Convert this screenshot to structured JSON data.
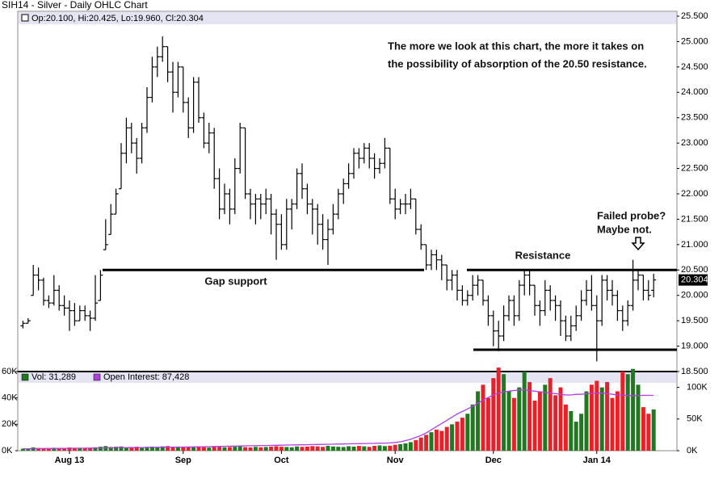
{
  "chart_data": {
    "type": "ohlc",
    "title": "SIH14 - Silver - Daily OHLC Chart",
    "info": "Op:20.100, Hi:20.425, Lo:19.960, Cl:20.304",
    "bar_color": "#000000",
    "xlim": [
      -1,
      126.5
    ],
    "xticks": [
      {
        "value": 9,
        "label": "Aug 13"
      },
      {
        "value": 31,
        "label": "Sep"
      },
      {
        "value": 50,
        "label": "Oct"
      },
      {
        "value": 72,
        "label": "Nov"
      },
      {
        "value": 91,
        "label": "Dec"
      },
      {
        "value": 111,
        "label": "Jan 14"
      }
    ],
    "ylim": [
      18.5,
      25.5
    ],
    "yticks": [
      {
        "value": 18.5,
        "label": "18.500"
      },
      {
        "value": 19,
        "label": "19.000"
      },
      {
        "value": 19.5,
        "label": "19.500"
      },
      {
        "value": 20,
        "label": "20.000"
      },
      {
        "value": 20.5,
        "label": "20.500"
      },
      {
        "value": 21,
        "label": "21.000"
      },
      {
        "value": 21.5,
        "label": "21.500"
      },
      {
        "value": 22,
        "label": "22.000"
      },
      {
        "value": 22.5,
        "label": "22.500"
      },
      {
        "value": 23,
        "label": "23.000"
      },
      {
        "value": 23.5,
        "label": "23.500"
      },
      {
        "value": 24,
        "label": "24.000"
      },
      {
        "value": 24.5,
        "label": "24.500"
      },
      {
        "value": 25,
        "label": "25.000"
      },
      {
        "value": 25.5,
        "label": "25.500"
      }
    ],
    "ohlc": [
      [
        19.4,
        19.5,
        19.35,
        19.45
      ],
      [
        19.45,
        19.55,
        19.45,
        19.5
      ],
      [
        20.0,
        20.6,
        20.0,
        20.4
      ],
      [
        20.4,
        20.55,
        20.1,
        20.3
      ],
      [
        20.3,
        20.35,
        19.8,
        19.9
      ],
      [
        19.9,
        20.0,
        19.75,
        19.85
      ],
      [
        19.85,
        20.4,
        19.8,
        20.1
      ],
      [
        20.1,
        20.2,
        19.7,
        19.8
      ],
      [
        19.8,
        20.0,
        19.6,
        19.75
      ],
      [
        19.75,
        19.9,
        19.3,
        19.7
      ],
      [
        19.7,
        19.85,
        19.4,
        19.5
      ],
      [
        19.5,
        19.8,
        19.5,
        19.7
      ],
      [
        19.7,
        19.8,
        19.5,
        19.6
      ],
      [
        19.6,
        19.7,
        19.3,
        19.55
      ],
      [
        19.55,
        20.4,
        19.5,
        19.85
      ],
      [
        19.9,
        20.5,
        19.9,
        20.4
      ],
      [
        20.9,
        21.5,
        20.9,
        21.0
      ],
      [
        21.2,
        21.8,
        21.2,
        21.6
      ],
      [
        21.6,
        22.1,
        21.6,
        22.0
      ],
      [
        22.1,
        23.0,
        22.1,
        22.8
      ],
      [
        22.8,
        23.5,
        22.6,
        23.3
      ],
      [
        23.3,
        23.4,
        22.8,
        23.0
      ],
      [
        23.0,
        23.1,
        22.4,
        22.7
      ],
      [
        22.7,
        23.4,
        22.6,
        23.3
      ],
      [
        23.3,
        24.1,
        23.2,
        23.9
      ],
      [
        23.9,
        24.7,
        23.8,
        24.5
      ],
      [
        24.5,
        24.9,
        24.3,
        24.7
      ],
      [
        24.7,
        25.1,
        24.6,
        24.9
      ],
      [
        24.9,
        24.9,
        24.2,
        24.4
      ],
      [
        24.4,
        24.6,
        23.6,
        24.0
      ],
      [
        24.0,
        24.6,
        23.9,
        24.5
      ],
      [
        24.5,
        24.5,
        23.6,
        23.8
      ],
      [
        23.8,
        23.9,
        23.1,
        23.3
      ],
      [
        23.3,
        24.3,
        23.2,
        24.2
      ],
      [
        24.2,
        24.3,
        23.4,
        23.5
      ],
      [
        23.5,
        23.6,
        22.9,
        23.0
      ],
      [
        23.0,
        23.4,
        22.8,
        23.2
      ],
      [
        23.2,
        23.3,
        22.1,
        22.3
      ],
      [
        22.3,
        22.5,
        21.5,
        21.7
      ],
      [
        21.7,
        22.2,
        21.6,
        22.0
      ],
      [
        22.0,
        22.1,
        21.4,
        21.7
      ],
      [
        21.7,
        22.7,
        21.6,
        22.5
      ],
      [
        22.5,
        23.4,
        22.4,
        23.3
      ],
      [
        23.3,
        23.3,
        21.9,
        22.0
      ],
      [
        22.0,
        22.1,
        21.5,
        21.8
      ],
      [
        21.8,
        22.0,
        21.4,
        21.9
      ],
      [
        21.9,
        22.0,
        21.5,
        21.8
      ],
      [
        21.8,
        22.1,
        21.6,
        21.9
      ],
      [
        21.9,
        22.0,
        21.2,
        21.6
      ],
      [
        21.6,
        21.7,
        20.7,
        21.4
      ],
      [
        21.4,
        21.6,
        20.9,
        21.0
      ],
      [
        21.0,
        21.9,
        20.9,
        21.7
      ],
      [
        21.7,
        21.9,
        21.3,
        21.8
      ],
      [
        21.8,
        22.5,
        21.7,
        22.4
      ],
      [
        22.4,
        22.6,
        21.9,
        22.1
      ],
      [
        22.1,
        22.2,
        21.6,
        21.8
      ],
      [
        21.8,
        21.9,
        21.2,
        21.7
      ],
      [
        21.7,
        21.8,
        21.0,
        21.4
      ],
      [
        21.4,
        21.6,
        20.9,
        21.1
      ],
      [
        21.1,
        21.5,
        20.6,
        21.3
      ],
      [
        21.3,
        21.8,
        21.2,
        21.6
      ],
      [
        21.6,
        22.1,
        21.5,
        22.0
      ],
      [
        22.0,
        22.3,
        21.8,
        22.2
      ],
      [
        22.2,
        22.6,
        22.1,
        22.4
      ],
      [
        22.4,
        22.9,
        22.3,
        22.8
      ],
      [
        22.8,
        22.9,
        22.5,
        22.7
      ],
      [
        22.7,
        23.0,
        22.6,
        22.9
      ],
      [
        22.9,
        23.0,
        22.5,
        22.7
      ],
      [
        22.7,
        22.8,
        22.3,
        22.5
      ],
      [
        22.5,
        22.7,
        22.4,
        22.6
      ],
      [
        22.6,
        23.1,
        22.5,
        22.9
      ],
      [
        22.9,
        22.9,
        21.8,
        21.9
      ],
      [
        21.9,
        22.1,
        21.5,
        21.7
      ],
      [
        21.7,
        21.9,
        21.6,
        21.8
      ],
      [
        21.8,
        22.0,
        21.6,
        21.8
      ],
      [
        21.8,
        22.1,
        21.7,
        21.9
      ],
      [
        21.9,
        21.9,
        21.2,
        21.3
      ],
      [
        21.3,
        21.4,
        20.9,
        21.0
      ],
      [
        21.0,
        21.0,
        20.5,
        20.6
      ],
      [
        20.6,
        20.9,
        20.5,
        20.8
      ],
      [
        20.8,
        20.9,
        20.5,
        20.7
      ],
      [
        20.7,
        20.8,
        20.3,
        20.6
      ],
      [
        20.6,
        20.6,
        20.1,
        20.3
      ],
      [
        20.3,
        20.5,
        20.1,
        20.4
      ],
      [
        20.4,
        20.5,
        19.9,
        20.1
      ],
      [
        20.1,
        20.2,
        19.8,
        19.9
      ],
      [
        19.9,
        20.1,
        19.8,
        20.0
      ],
      [
        20.0,
        20.4,
        19.9,
        20.2
      ],
      [
        20.2,
        20.4,
        20.0,
        20.3
      ],
      [
        20.3,
        20.3,
        19.8,
        19.9
      ],
      [
        19.9,
        20.0,
        19.4,
        19.6
      ],
      [
        19.6,
        19.7,
        19.0,
        19.3
      ],
      [
        19.3,
        19.5,
        18.9,
        19.2
      ],
      [
        19.2,
        19.8,
        19.1,
        19.6
      ],
      [
        19.6,
        20.0,
        19.5,
        19.9
      ],
      [
        19.9,
        20.0,
        19.4,
        19.6
      ],
      [
        19.6,
        20.3,
        19.5,
        20.2
      ],
      [
        20.2,
        20.5,
        20.0,
        20.4
      ],
      [
        20.4,
        20.5,
        20.0,
        20.2
      ],
      [
        20.2,
        20.2,
        19.6,
        19.8
      ],
      [
        19.8,
        19.9,
        19.4,
        19.7
      ],
      [
        19.7,
        20.3,
        19.6,
        20.1
      ],
      [
        20.1,
        20.2,
        19.7,
        19.9
      ],
      [
        19.9,
        20.0,
        19.5,
        19.8
      ],
      [
        19.8,
        19.9,
        19.2,
        19.5
      ],
      [
        19.5,
        19.6,
        19.1,
        19.2
      ],
      [
        19.2,
        19.6,
        19.1,
        19.4
      ],
      [
        19.4,
        19.8,
        19.3,
        19.6
      ],
      [
        19.6,
        20.1,
        19.5,
        19.9
      ],
      [
        19.9,
        20.3,
        19.8,
        20.1
      ],
      [
        20.1,
        20.4,
        19.7,
        19.8
      ],
      [
        19.8,
        20.0,
        18.7,
        19.5
      ],
      [
        19.5,
        20.4,
        19.4,
        20.3
      ],
      [
        20.3,
        20.4,
        19.9,
        20.1
      ],
      [
        20.1,
        20.3,
        19.8,
        20.0
      ],
      [
        20.0,
        20.1,
        19.5,
        19.7
      ],
      [
        19.7,
        19.8,
        19.3,
        19.5
      ],
      [
        19.5,
        19.9,
        19.4,
        19.8
      ],
      [
        19.8,
        20.7,
        19.7,
        20.3
      ],
      [
        20.3,
        20.5,
        20.1,
        20.4
      ],
      [
        20.4,
        20.4,
        19.9,
        20.1
      ],
      [
        20.1,
        20.3,
        19.9,
        20.0
      ],
      [
        20.1,
        20.425,
        19.96,
        20.304
      ]
    ],
    "levels": [
      {
        "value": 20.5,
        "label": "Gap support"
      },
      {
        "value": 20.5,
        "label": "Resistance"
      },
      {
        "value": 18.93
      }
    ],
    "level_color": "#000000",
    "annotations": [
      "The more we look at this chart, the more it takes on",
      "the possibility of absorption of the 20.50 resistance.",
      "Failed probe?",
      "Maybe not."
    ],
    "volume": {
      "label": "Vol: 31,289",
      "up_color": "#1f7a1f",
      "down_color": "#e8202a",
      "values": [
        1500,
        1200,
        2500,
        2000,
        1800,
        1500,
        2200,
        1900,
        2000,
        2400,
        1800,
        1700,
        2000,
        2200,
        2600,
        3000,
        3500,
        2800,
        3000,
        3200,
        2500,
        2800,
        3000,
        2600,
        2900,
        3100,
        2700,
        3300,
        3500,
        3000,
        2800,
        2600,
        2900,
        2500,
        3000,
        2700,
        2400,
        3100,
        2900,
        2600,
        2800,
        3000,
        3300,
        2700,
        2500,
        2900,
        2600,
        2800,
        3100,
        3400,
        3000,
        2800,
        2600,
        3200,
        2900,
        3100,
        3500,
        3300,
        2900,
        3700,
        3200,
        3000,
        2800,
        3400,
        3100,
        3600,
        3300,
        2900,
        3700,
        4000,
        3500,
        3800,
        4500,
        5000,
        5500,
        6500,
        8000,
        10000,
        12000,
        14000,
        16000,
        15000,
        18000,
        20000,
        22000,
        25000,
        28000,
        35000,
        45000,
        50000,
        40000,
        55000,
        63000,
        58000,
        45000,
        40000,
        48000,
        60000,
        52000,
        38000,
        45000,
        50000,
        55000,
        42000,
        48000,
        35000,
        30000,
        22000,
        28000,
        45000,
        50000,
        53000,
        48000,
        52000,
        40000,
        45000,
        60000,
        58000,
        62000,
        50000,
        33000,
        28000,
        31289
      ]
    },
    "vol_ylim": [
      0,
      60000
    ],
    "vol_yticks": [
      {
        "value": 0,
        "label": "0K"
      },
      {
        "value": 20000,
        "label": "20K"
      },
      {
        "value": 40000,
        "label": "40K"
      },
      {
        "value": 60000,
        "label": "60K"
      }
    ],
    "open_interest": {
      "label": "Open Interest: 87,428",
      "color": "#b040e0",
      "axis": "y2",
      "values": [
        3000,
        3100,
        3200,
        3300,
        3400,
        3500,
        3500,
        3600,
        3700,
        3800,
        3900,
        4000,
        4000,
        4100,
        4200,
        4300,
        4400,
        4500,
        4600,
        4700,
        4800,
        4900,
        5000,
        5000,
        5100,
        5200,
        5300,
        5400,
        5500,
        5600,
        5700,
        5800,
        5900,
        6000,
        6200,
        6300,
        6500,
        6600,
        6800,
        7000,
        7100,
        7300,
        7400,
        7600,
        7800,
        7900,
        8100,
        8200,
        8400,
        8500,
        8700,
        8900,
        9000,
        9200,
        9300,
        9500,
        9700,
        9800,
        10000,
        10100,
        10300,
        10500,
        10600,
        10800,
        11000,
        11100,
        11300,
        11500,
        11600,
        11800,
        12000,
        12200,
        13000,
        14000,
        16000,
        18000,
        21000,
        24000,
        28000,
        33000,
        38000,
        43000,
        48000,
        53000,
        58000,
        62000,
        66000,
        70000,
        75000,
        80000,
        84000,
        88000,
        91000,
        93000,
        94000,
        95000,
        96000,
        96000,
        95000,
        94000,
        93000,
        92000,
        91000,
        90000,
        89000,
        88000,
        88000,
        89000,
        89000,
        90000,
        90000,
        91000,
        91000,
        90000,
        89000,
        88000,
        88000,
        87000,
        87000,
        87000,
        87500,
        87400,
        87428
      ]
    },
    "y2lim": [
      0,
      125000
    ],
    "y2ticks": [
      {
        "value": 0,
        "label": "0K"
      },
      {
        "value": 50000,
        "label": "50K"
      },
      {
        "value": 100000,
        "label": "100K"
      }
    ]
  }
}
